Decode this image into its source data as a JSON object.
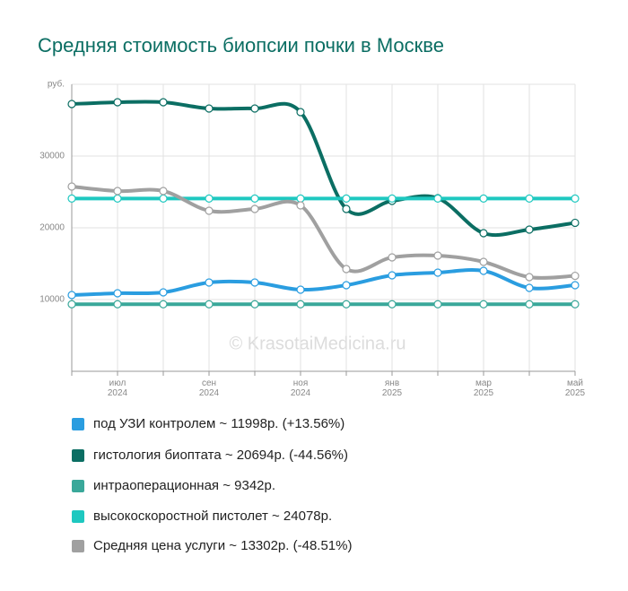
{
  "chart_data": {
    "type": "line",
    "title": "Средняя стоимость биопсии почки в Москве",
    "watermark": "© KrasotaiMedicina.ru",
    "categories": [
      null,
      "июл\n2024",
      null,
      "сен\n2024",
      null,
      "ноя\n2024",
      null,
      "янв\n2025",
      null,
      "мар\n2025",
      null,
      "май\n2025"
    ],
    "ylim": [
      0,
      40000
    ],
    "yticks": [
      10000,
      20000,
      30000,
      {
        "value": 40000,
        "label": "руб."
      }
    ],
    "grid": true,
    "series": [
      {
        "name": "под УЗИ контролем ~ 11998р. (+13.56%)",
        "color": "#2a9de0",
        "values": [
          10625,
          10875,
          11000,
          12375,
          12375,
          11375,
          12000,
          13375,
          13750,
          14000,
          11625,
          11998
        ]
      },
      {
        "name": "гистология биоптата ~ 20694р. (-44.56%)",
        "color": "#0b6e63",
        "values": [
          37250,
          37500,
          37500,
          36625,
          36625,
          36125,
          22625,
          23750,
          24125,
          19250,
          19750,
          20694
        ]
      },
      {
        "name": "интраоперационная ~ 9342р.",
        "color": "#3aa89a",
        "values": [
          9342,
          9342,
          9342,
          9342,
          9342,
          9342,
          9342,
          9342,
          9342,
          9342,
          9342,
          9342
        ]
      },
      {
        "name": "высокоскоростной пистолет ~ 24078р.",
        "color": "#1ec8c0",
        "values": [
          24078,
          24078,
          24078,
          24078,
          24078,
          24078,
          24078,
          24078,
          24078,
          24078,
          24078,
          24078
        ]
      },
      {
        "name": "Средняя цена услуги ~ 13302р. (-48.51%)",
        "color": "#a0a0a0",
        "values": [
          25750,
          25125,
          25125,
          22375,
          22625,
          23125,
          14250,
          15875,
          16125,
          15250,
          13125,
          13302
        ]
      }
    ]
  }
}
